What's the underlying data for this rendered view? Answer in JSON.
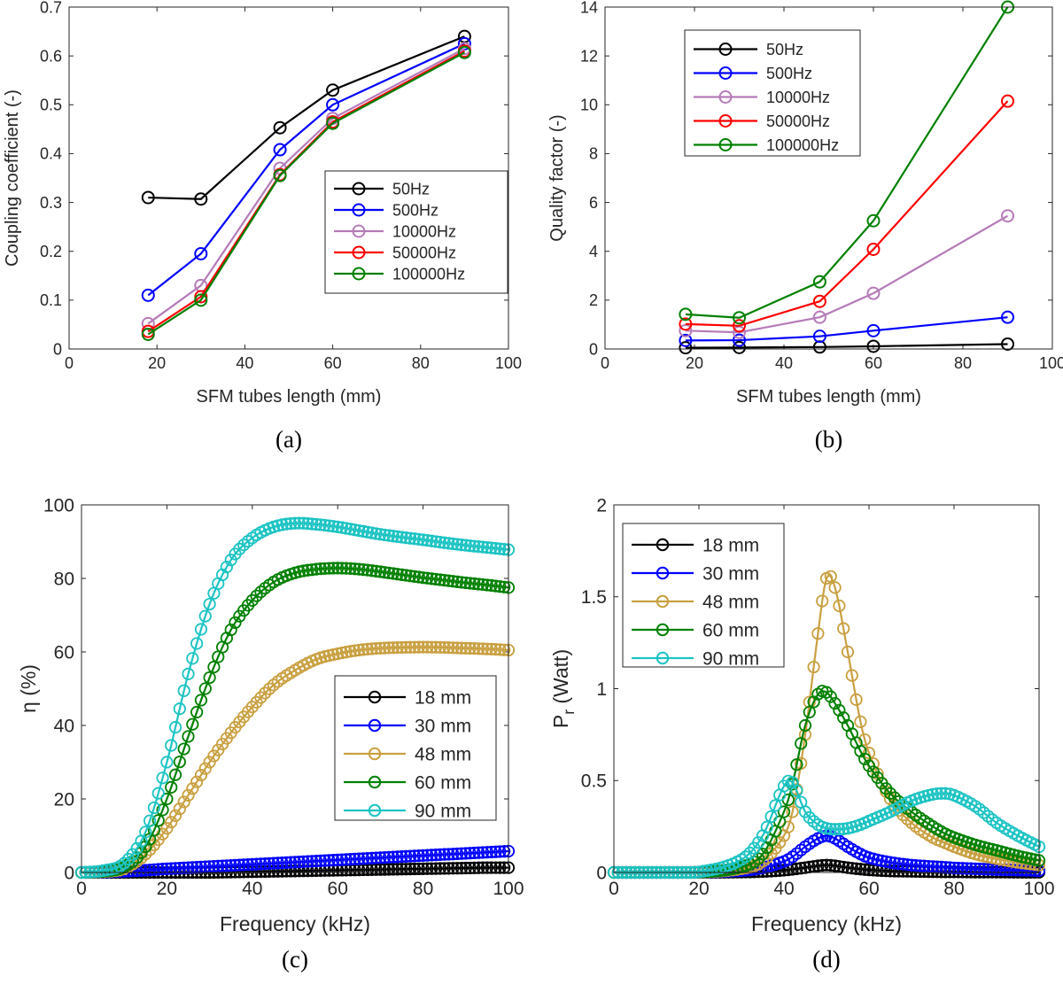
{
  "colors": {
    "black": "#000000",
    "blue": "#0000ff",
    "purple": "#b57bb8",
    "red": "#ff0000",
    "green": "#008000",
    "gold": "#c9a040",
    "cyan": "#1cc3c3"
  },
  "chart_data": [
    {
      "type": "line",
      "panel": "a",
      "caption": "(a)",
      "xlabel": "SFM tubes length (mm)",
      "ylabel": "Coupling coefficient (-)",
      "xlim": [
        0,
        100
      ],
      "ylim": [
        0,
        0.7
      ],
      "xticks": [
        0,
        20,
        40,
        60,
        80,
        100
      ],
      "yticks": [
        0,
        0.1,
        0.2,
        0.3,
        0.4,
        0.5,
        0.6,
        0.7
      ],
      "ytick_labels": [
        "0",
        "0.1",
        "0.2",
        "0.3",
        "0.4",
        "0.5",
        "0.6",
        "0.7"
      ],
      "legend_position": "center-right",
      "x": [
        18,
        30,
        48,
        60,
        90
      ],
      "series": [
        {
          "name": "50Hz",
          "color": "black",
          "values": [
            0.31,
            0.307,
            0.453,
            0.53,
            0.64
          ]
        },
        {
          "name": "500Hz",
          "color": "blue",
          "values": [
            0.11,
            0.195,
            0.408,
            0.5,
            0.625
          ]
        },
        {
          "name": "10000Hz",
          "color": "purple",
          "values": [
            0.052,
            0.13,
            0.37,
            0.472,
            0.615
          ]
        },
        {
          "name": "50000Hz",
          "color": "red",
          "values": [
            0.036,
            0.107,
            0.357,
            0.465,
            0.61
          ]
        },
        {
          "name": "100000Hz",
          "color": "green",
          "values": [
            0.03,
            0.1,
            0.355,
            0.462,
            0.607
          ]
        }
      ]
    },
    {
      "type": "line",
      "panel": "b",
      "caption": "(b)",
      "xlabel": "SFM tubes length (mm)",
      "ylabel": "Quality factor (-)",
      "xlim": [
        0,
        100
      ],
      "ylim": [
        0,
        14
      ],
      "xticks": [
        0,
        20,
        40,
        60,
        80,
        100
      ],
      "yticks": [
        0,
        2,
        4,
        6,
        8,
        10,
        12,
        14
      ],
      "ytick_labels": [
        "0",
        "2",
        "4",
        "6",
        "8",
        "10",
        "12",
        "14"
      ],
      "legend_position": "top-left",
      "x": [
        18,
        30,
        48,
        60,
        90
      ],
      "series": [
        {
          "name": "50Hz",
          "color": "black",
          "values": [
            0.05,
            0.06,
            0.08,
            0.11,
            0.2
          ]
        },
        {
          "name": "500Hz",
          "color": "blue",
          "values": [
            0.35,
            0.36,
            0.52,
            0.75,
            1.3
          ]
        },
        {
          "name": "10000Hz",
          "color": "purple",
          "values": [
            0.75,
            0.68,
            1.3,
            2.28,
            5.45
          ]
        },
        {
          "name": "50000Hz",
          "color": "red",
          "values": [
            1.02,
            0.95,
            1.95,
            4.08,
            10.15
          ]
        },
        {
          "name": "100000Hz",
          "color": "green",
          "values": [
            1.42,
            1.28,
            2.75,
            5.25,
            14.0
          ]
        }
      ]
    },
    {
      "type": "line",
      "panel": "c",
      "caption": "(c)",
      "xlabel": "Frequency (kHz)",
      "ylabel": "η (%)",
      "xlim": [
        0,
        100
      ],
      "ylim": [
        0,
        100
      ],
      "xticks": [
        0,
        20,
        40,
        60,
        80,
        100
      ],
      "yticks": [
        0,
        20,
        40,
        60,
        80,
        100
      ],
      "ytick_labels": [
        "0",
        "20",
        "40",
        "60",
        "80",
        "100"
      ],
      "legend_position": "center-right",
      "x_sampled": [
        0,
        5,
        10,
        15,
        20,
        25,
        30,
        35,
        40,
        45,
        50,
        55,
        60,
        65,
        70,
        75,
        80,
        85,
        90,
        95,
        100
      ],
      "series": [
        {
          "name": "18 mm",
          "color": "black",
          "values": [
            0,
            0,
            0,
            0,
            0,
            0,
            0,
            0.1,
            0.2,
            0.3,
            0.4,
            0.5,
            0.6,
            0.7,
            0.8,
            0.9,
            1.0,
            1.1,
            1.2,
            1.3,
            1.3
          ]
        },
        {
          "name": "30 mm",
          "color": "blue",
          "values": [
            0,
            0.1,
            0.3,
            0.6,
            1.0,
            1.3,
            1.6,
            1.9,
            2.2,
            2.5,
            2.8,
            3.1,
            3.4,
            3.7,
            4.0,
            4.3,
            4.6,
            4.9,
            5.2,
            5.5,
            5.8
          ]
        },
        {
          "name": "48 mm",
          "color": "gold",
          "values": [
            0,
            0.2,
            1,
            5,
            12,
            21,
            30,
            38,
            45,
            51,
            55,
            58,
            59.5,
            60.5,
            61,
            61.2,
            61.3,
            61.2,
            61,
            60.8,
            60.5
          ]
        },
        {
          "name": "60 mm",
          "color": "green",
          "values": [
            0,
            0.3,
            1.5,
            7,
            20,
            37,
            53,
            66,
            74,
            79,
            81.5,
            82.5,
            82.8,
            82.5,
            81.8,
            81,
            80.2,
            79.5,
            78.8,
            78.2,
            77.5
          ]
        },
        {
          "name": "90 mm",
          "color": "cyan",
          "values": [
            0,
            0.5,
            2.5,
            11,
            30,
            54,
            73,
            85,
            91,
            94,
            95,
            94.7,
            94,
            93,
            92,
            91.2,
            90.5,
            89.7,
            89,
            88.4,
            87.8
          ]
        }
      ]
    },
    {
      "type": "line",
      "panel": "d",
      "caption": "(d)",
      "xlabel": "Frequency (kHz)",
      "ylabel_main": "P",
      "ylabel_sub": "r",
      "ylabel_unit": " (Watt)",
      "xlim": [
        0,
        100
      ],
      "ylim": [
        0,
        2
      ],
      "xticks": [
        0,
        20,
        40,
        60,
        80,
        100
      ],
      "yticks": [
        0,
        0.5,
        1,
        1.5,
        2
      ],
      "ytick_labels": [
        "0",
        "0.5",
        "1",
        "1.5",
        "2"
      ],
      "legend_position": "top-left",
      "x_sampled": [
        0,
        10,
        20,
        30,
        35,
        40,
        42,
        45,
        48,
        50,
        52,
        55,
        58,
        60,
        65,
        70,
        75,
        78,
        80,
        85,
        90,
        95,
        100
      ],
      "series": [
        {
          "name": "18 mm",
          "color": "black",
          "values": [
            0,
            0,
            0,
            0.002,
            0.005,
            0.012,
            0.017,
            0.026,
            0.036,
            0.04,
            0.036,
            0.026,
            0.018,
            0.014,
            0.008,
            0.006,
            0.004,
            0.003,
            0.003,
            0.002,
            0.002,
            0.001,
            0.001
          ]
        },
        {
          "name": "30 mm",
          "color": "blue",
          "values": [
            0,
            0,
            0.001,
            0.01,
            0.025,
            0.06,
            0.085,
            0.14,
            0.185,
            0.2,
            0.185,
            0.14,
            0.1,
            0.08,
            0.055,
            0.04,
            0.032,
            0.028,
            0.025,
            0.02,
            0.016,
            0.013,
            0.01
          ]
        },
        {
          "name": "48 mm",
          "color": "gold",
          "values": [
            0,
            0,
            0.001,
            0.02,
            0.06,
            0.2,
            0.33,
            0.75,
            1.3,
            1.6,
            1.55,
            1.2,
            0.82,
            0.65,
            0.4,
            0.27,
            0.19,
            0.16,
            0.14,
            0.1,
            0.075,
            0.055,
            0.04
          ]
        },
        {
          "name": "60 mm",
          "color": "green",
          "values": [
            0,
            0,
            0.002,
            0.03,
            0.1,
            0.33,
            0.48,
            0.8,
            0.97,
            0.98,
            0.92,
            0.8,
            0.66,
            0.58,
            0.43,
            0.33,
            0.25,
            0.21,
            0.19,
            0.15,
            0.12,
            0.09,
            0.065
          ]
        },
        {
          "name": "90 mm",
          "color": "cyan",
          "values": [
            0,
            0,
            0.003,
            0.07,
            0.2,
            0.47,
            0.49,
            0.33,
            0.26,
            0.24,
            0.235,
            0.24,
            0.26,
            0.28,
            0.33,
            0.39,
            0.425,
            0.43,
            0.42,
            0.36,
            0.27,
            0.2,
            0.14
          ]
        }
      ]
    }
  ]
}
